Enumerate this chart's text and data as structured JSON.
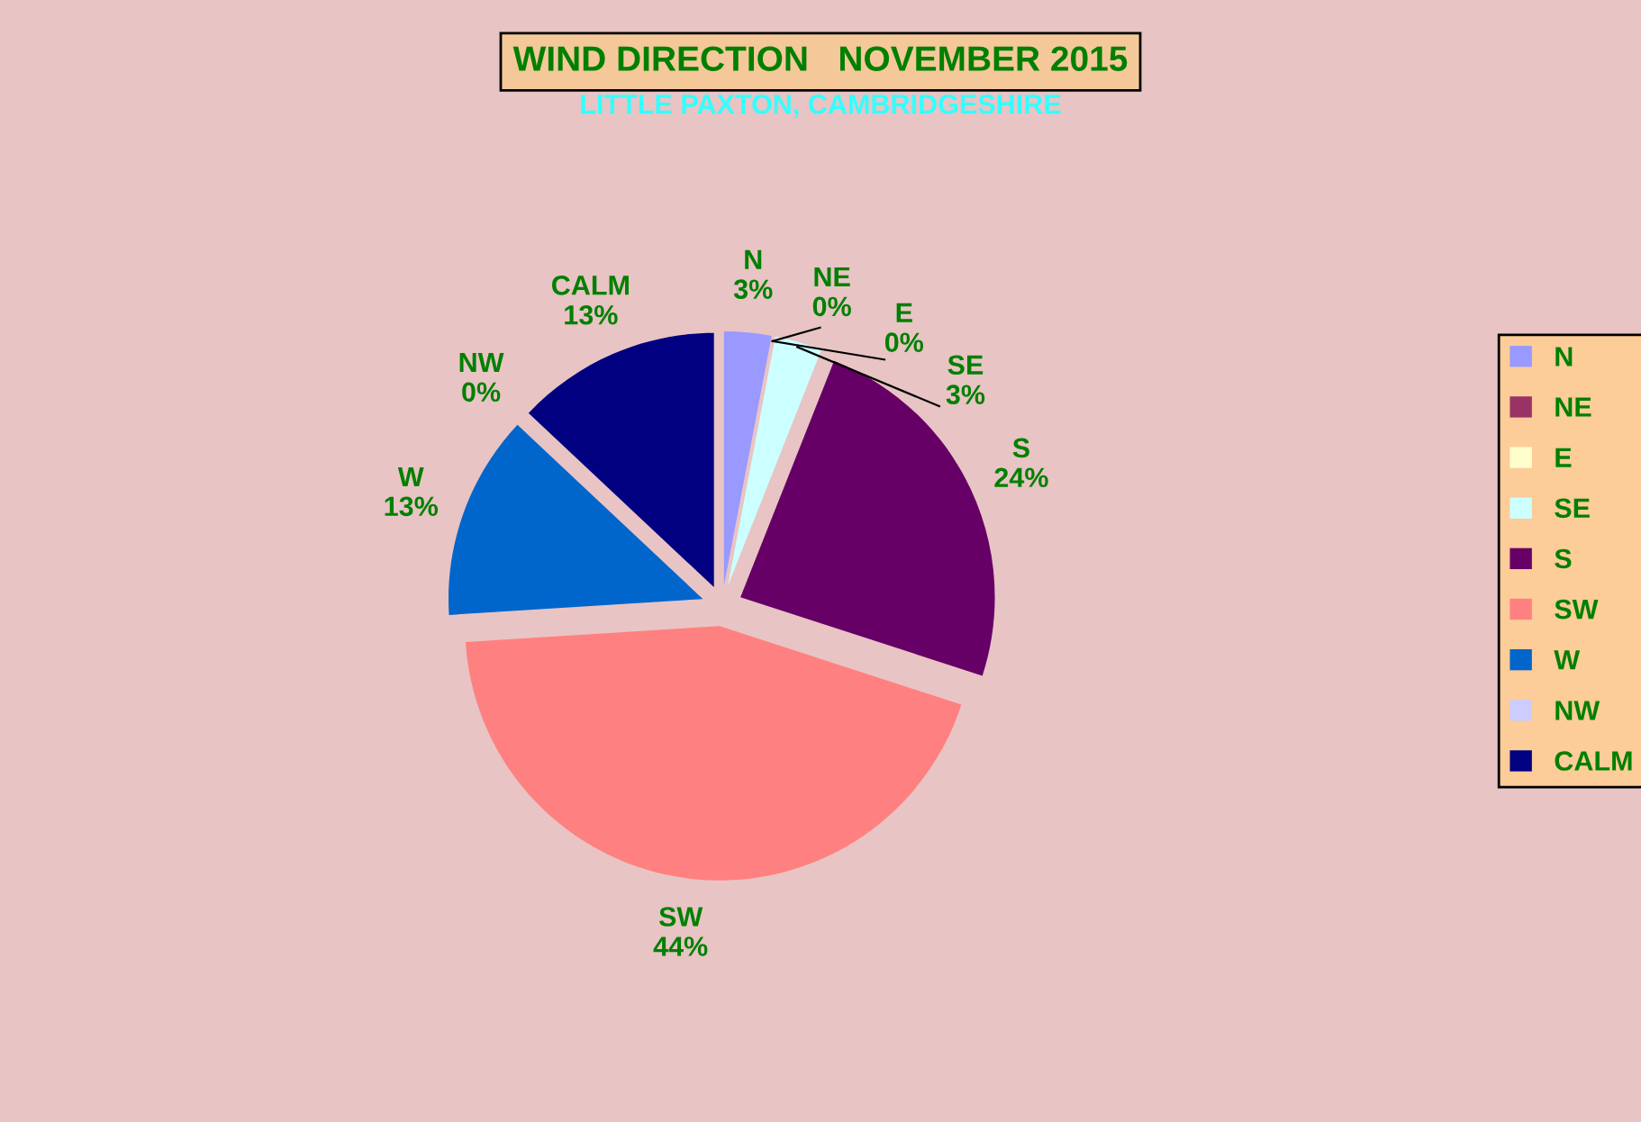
{
  "chart_data": {
    "type": "pie",
    "title": "WIND DIRECTION   NOVEMBER 2015",
    "subtitle": "LITTLE PAXTON, CAMBRIDGESHIRE",
    "categories": [
      "N",
      "NE",
      "E",
      "SE",
      "S",
      "SW",
      "W",
      "NW",
      "CALM"
    ],
    "values": [
      3,
      0,
      0,
      3,
      24,
      44,
      13,
      0,
      13
    ],
    "colors": [
      "#9999ff",
      "#993366",
      "#ffffcc",
      "#ccffff",
      "#660066",
      "#ff8080",
      "#0066cc",
      "#ccccff",
      "#000080"
    ],
    "value_labels": [
      "3%",
      "0%",
      "0%",
      "3%",
      "24%",
      "44%",
      "13%",
      "0%",
      "13%"
    ],
    "legend": "right"
  }
}
